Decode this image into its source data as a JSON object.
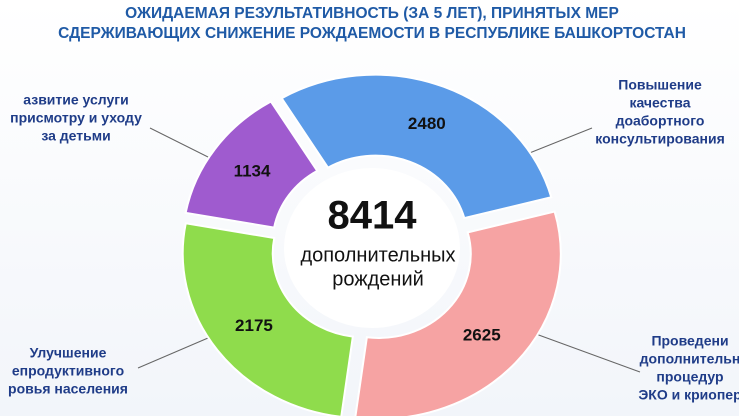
{
  "chart_data": {
    "type": "donut",
    "title": [
      "ОЖИДАЕМАЯ РЕЗУЛЬТАТИВНОСТЬ (ЗА 5 ЛЕТ), ПРИНЯТЫХ МЕР",
      "СДЕРЖИВАЮЩИХ СНИЖЕНИЕ РОЖДАЕМОСТИ В РЕСПУБЛИКЕ БАШКОРТОСТАН"
    ],
    "center_value": 8414,
    "center_label": [
      "дополнительных",
      "рождений"
    ],
    "categories": [
      [
        "Повышение",
        "качества",
        "доабортного",
        "консультирования"
      ],
      [
        "Проведени",
        "дополнительн",
        "процедур",
        "ЭКО и криопер"
      ],
      [
        "Улучшение",
        "епродуктивного",
        "ровья населения"
      ],
      [
        "азвитие услуги",
        "присмотру и уходу",
        "за детьми"
      ]
    ],
    "values": [
      2480,
      2625,
      2175,
      1134
    ],
    "colors": [
      "#5b9be8",
      "#f6a3a3",
      "#8fdc4c",
      "#9f5bcf"
    ]
  }
}
